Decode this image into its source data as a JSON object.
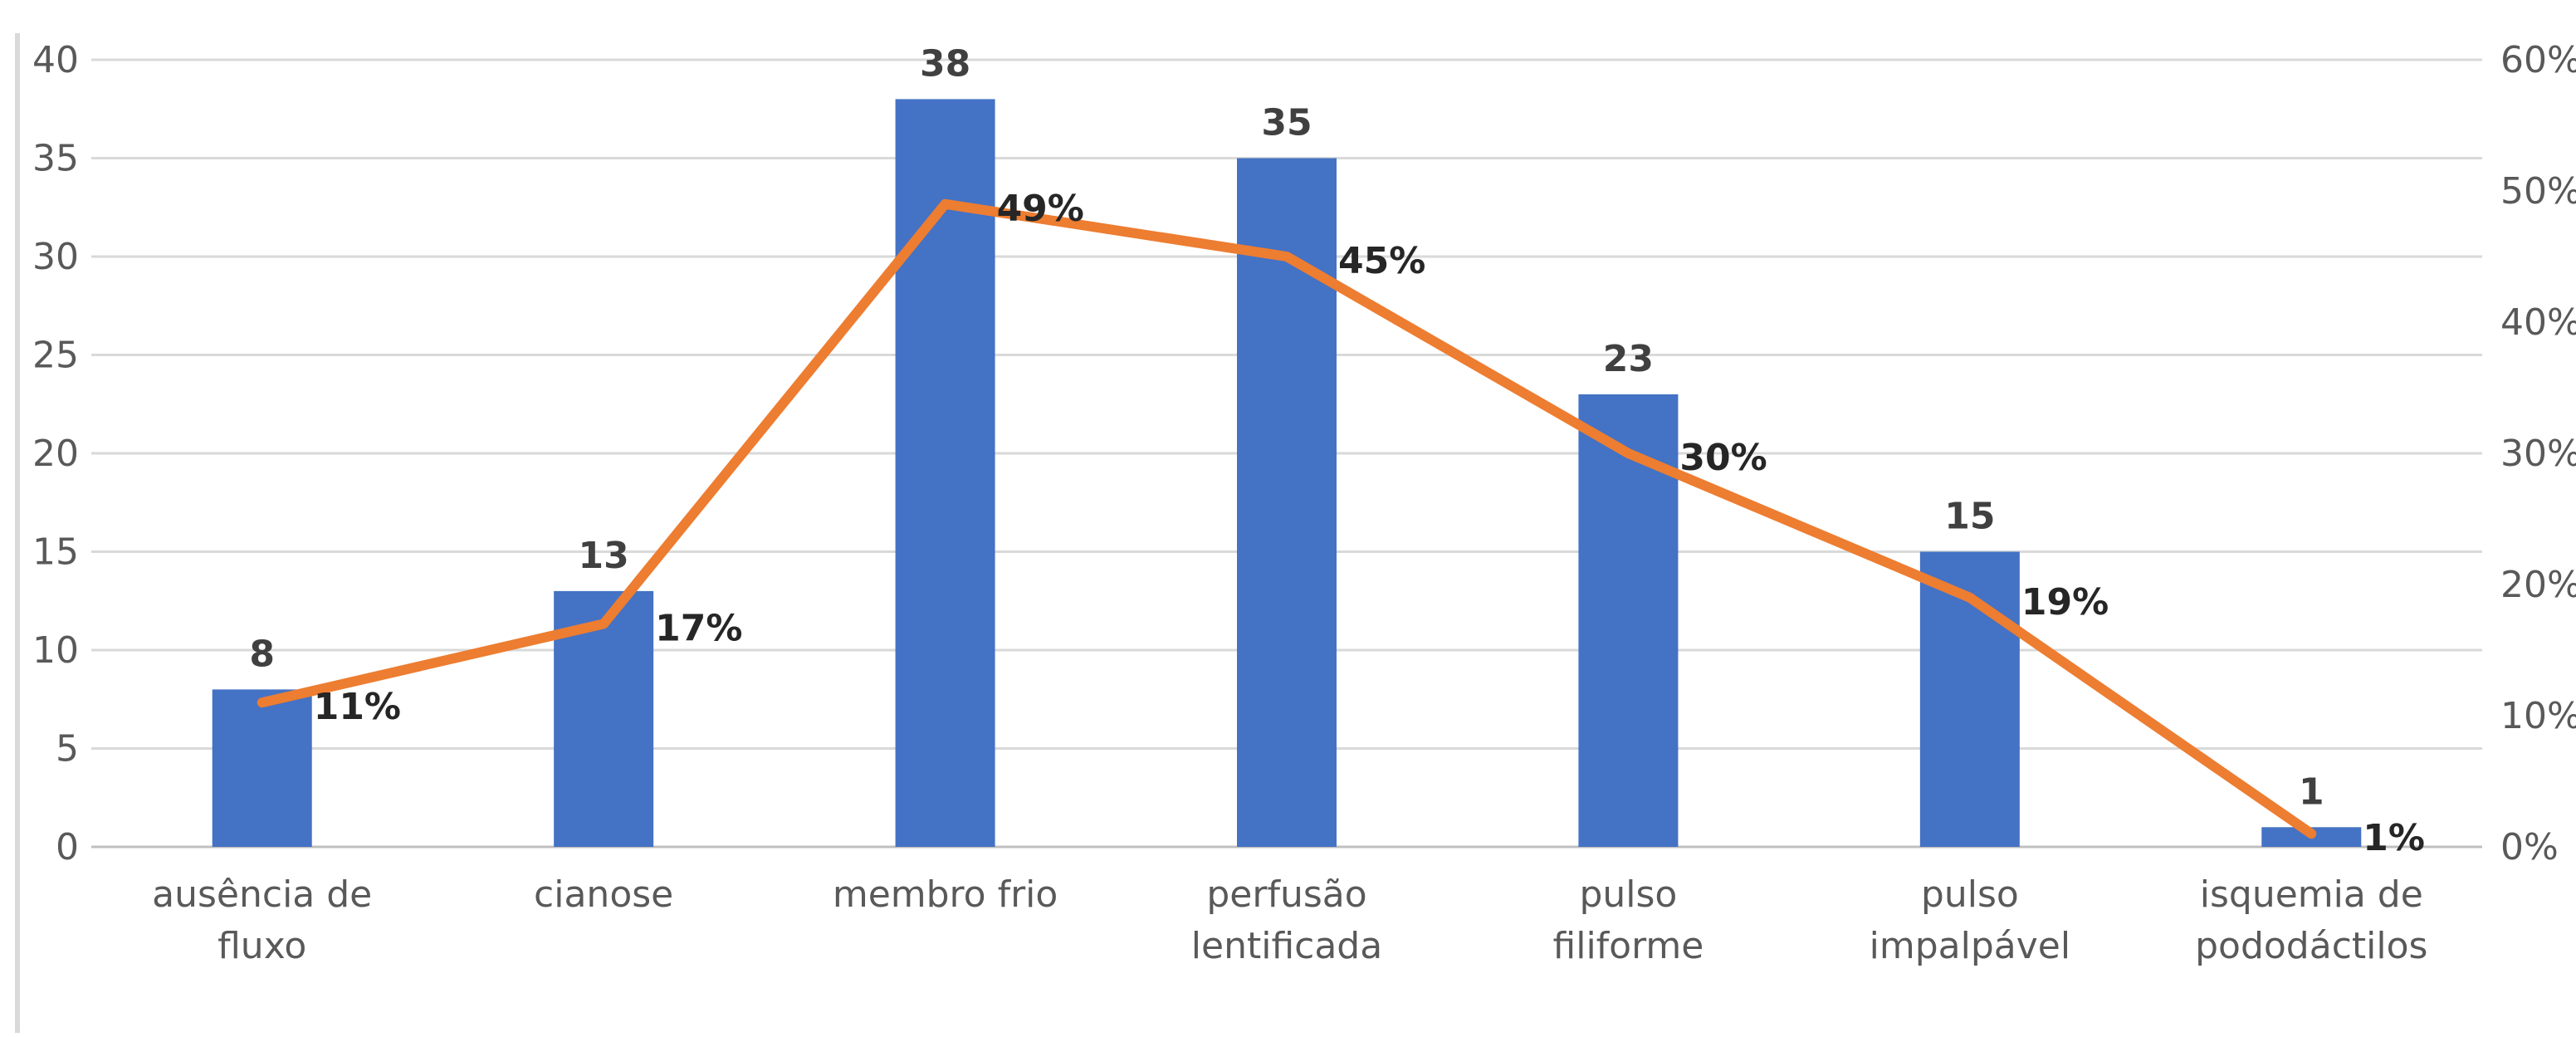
{
  "chart_data": {
    "type": "bar",
    "categories": [
      [
        "ausência de",
        "fluxo"
      ],
      [
        "cianose"
      ],
      [
        "membro frio"
      ],
      [
        "perfusão",
        "lentificada"
      ],
      [
        "pulso",
        "filiforme"
      ],
      [
        "pulso",
        "impalpável"
      ],
      [
        "isquemia de",
        "pododáctilos"
      ]
    ],
    "series": [
      {
        "type": "bar",
        "values": [
          8,
          13,
          38,
          35,
          23,
          15,
          1
        ],
        "labels": [
          "8",
          "13",
          "38",
          "35",
          "23",
          "15",
          "1"
        ],
        "color": "#4472c4",
        "axis": "left"
      },
      {
        "type": "line",
        "values": [
          11,
          17,
          49,
          45,
          30,
          19,
          1
        ],
        "labels": [
          "11%",
          "17%",
          "49%",
          "45%",
          "30%",
          "19%",
          "1%"
        ],
        "color": "#ed7d31",
        "axis": "right"
      }
    ],
    "left_axis": {
      "ylim": [
        0,
        40
      ],
      "ticks": [
        "0",
        "5",
        "10",
        "15",
        "20",
        "25",
        "30",
        "35",
        "40"
      ]
    },
    "right_axis": {
      "ylim": [
        0,
        60
      ],
      "ticks": [
        "0%",
        "10%",
        "20%",
        "30%",
        "40%",
        "50%",
        "60%"
      ]
    },
    "title": "",
    "xlabel": "",
    "ylabel": "",
    "grid": true,
    "legend": "none"
  }
}
